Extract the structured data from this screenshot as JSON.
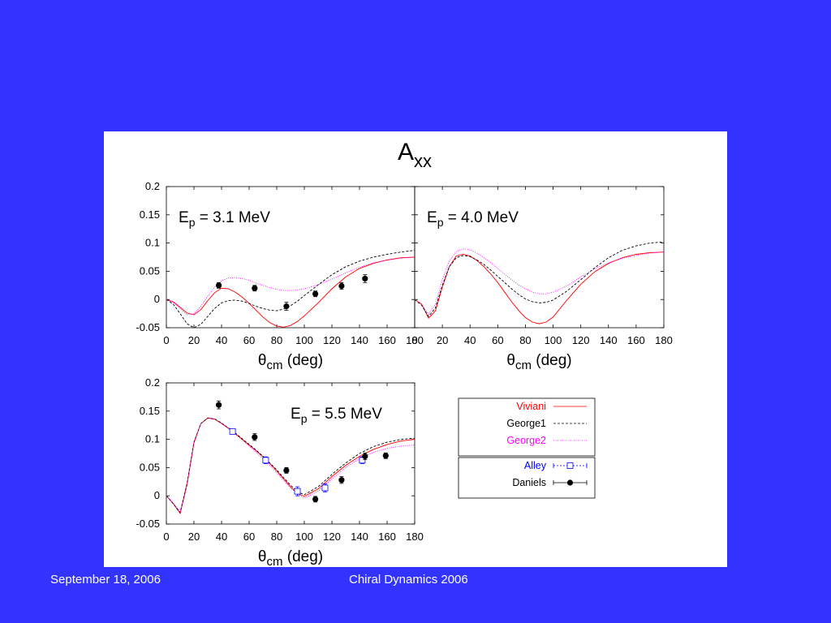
{
  "footer": {
    "date": "September 18, 2006",
    "event": "Chiral Dynamics 2006"
  },
  "figure": {
    "title_main": "A",
    "title_sub": "xx"
  },
  "colors": {
    "background": "#3333ff",
    "viviani": "#ff0000",
    "george1": "#000000",
    "george2": "#ff00ff",
    "alley": "#0000ff",
    "daniels": "#000000"
  },
  "legend": {
    "curves": [
      {
        "key": "viviani",
        "label": "Viviani",
        "color": "#ff0000",
        "style": "solid"
      },
      {
        "key": "george1",
        "label": "George1",
        "color": "#000000",
        "style": "dashed"
      },
      {
        "key": "george2",
        "label": "George2",
        "color": "#ff00ff",
        "style": "dotted"
      }
    ],
    "data": [
      {
        "key": "alley",
        "label": "Alley",
        "color": "#0000ff",
        "marker": "open-square"
      },
      {
        "key": "daniels",
        "label": "Daniels",
        "color": "#000000",
        "marker": "filled-circle"
      }
    ]
  },
  "chart_data": [
    {
      "type": "line",
      "title": "",
      "annotation": {
        "main": "E",
        "sub": "p",
        "rest": " = 3.1 MeV"
      },
      "xlabel": {
        "theta": "θ",
        "sub": "cm",
        "rest": " (deg)"
      },
      "xlim": [
        0,
        180
      ],
      "ylim": [
        -0.05,
        0.2
      ],
      "xticks": [
        "0",
        "20",
        "40",
        "60",
        "80",
        "100",
        "120",
        "140",
        "160",
        "180"
      ],
      "yticks": [
        "-0.05",
        "0",
        "0.05",
        "0.1",
        "0.15",
        "0.2"
      ],
      "series": [
        {
          "name": "Viviani",
          "color": "#ff0000",
          "style": "solid",
          "x": [
            0,
            5,
            10,
            15,
            20,
            25,
            30,
            35,
            40,
            45,
            50,
            55,
            60,
            65,
            70,
            75,
            80,
            85,
            90,
            95,
            100,
            110,
            120,
            130,
            140,
            150,
            160,
            170,
            180
          ],
          "y": [
            0.0,
            -0.004,
            -0.014,
            -0.024,
            -0.027,
            -0.018,
            -0.002,
            0.012,
            0.02,
            0.019,
            0.013,
            0.004,
            -0.007,
            -0.019,
            -0.031,
            -0.041,
            -0.047,
            -0.049,
            -0.046,
            -0.039,
            -0.029,
            -0.006,
            0.019,
            0.04,
            0.055,
            0.064,
            0.07,
            0.074,
            0.075
          ]
        },
        {
          "name": "George1",
          "color": "#000000",
          "style": "dashed",
          "x": [
            0,
            5,
            10,
            15,
            20,
            25,
            30,
            35,
            40,
            45,
            50,
            55,
            60,
            65,
            70,
            75,
            80,
            85,
            90,
            95,
            100,
            110,
            120,
            130,
            140,
            150,
            160,
            170,
            180
          ],
          "y": [
            0.0,
            -0.008,
            -0.025,
            -0.043,
            -0.05,
            -0.044,
            -0.03,
            -0.016,
            -0.006,
            -0.002,
            -0.001,
            -0.003,
            -0.007,
            -0.012,
            -0.016,
            -0.019,
            -0.02,
            -0.017,
            -0.011,
            -0.003,
            0.007,
            0.026,
            0.044,
            0.058,
            0.068,
            0.075,
            0.08,
            0.084,
            0.087
          ]
        },
        {
          "name": "George2",
          "color": "#ff00ff",
          "style": "dotted",
          "x": [
            0,
            5,
            10,
            15,
            20,
            25,
            30,
            35,
            40,
            45,
            50,
            55,
            60,
            65,
            70,
            75,
            80,
            85,
            90,
            95,
            100,
            110,
            120,
            130,
            140,
            150,
            160,
            170,
            180
          ],
          "y": [
            0.0,
            -0.005,
            -0.016,
            -0.027,
            -0.025,
            -0.012,
            0.006,
            0.022,
            0.033,
            0.038,
            0.039,
            0.037,
            0.034,
            0.029,
            0.025,
            0.021,
            0.018,
            0.016,
            0.016,
            0.017,
            0.019,
            0.026,
            0.036,
            0.047,
            0.057,
            0.065,
            0.07,
            0.073,
            0.075
          ]
        },
        {
          "name": "Daniels",
          "color": "#000000",
          "marker": "filled-circle",
          "x": [
            38,
            64,
            87,
            108,
            127,
            144
          ],
          "y": [
            0.025,
            0.02,
            -0.012,
            0.01,
            0.024,
            0.037
          ],
          "err": [
            0.005,
            0.005,
            0.007,
            0.005,
            0.006,
            0.007
          ]
        }
      ]
    },
    {
      "type": "line",
      "title": "",
      "annotation": {
        "main": "E",
        "sub": "p",
        "rest": " = 4.0 MeV"
      },
      "xlabel": {
        "theta": "θ",
        "sub": "cm",
        "rest": " (deg)"
      },
      "xlim": [
        0,
        180
      ],
      "ylim": [
        -0.05,
        0.2
      ],
      "xticks": [
        "0",
        "20",
        "40",
        "60",
        "80",
        "100",
        "120",
        "140",
        "160",
        "180"
      ],
      "yticks": [],
      "series": [
        {
          "name": "Viviani",
          "color": "#ff0000",
          "style": "solid",
          "x": [
            0,
            5,
            10,
            15,
            20,
            25,
            30,
            35,
            40,
            45,
            50,
            55,
            60,
            65,
            70,
            75,
            80,
            85,
            90,
            95,
            100,
            110,
            120,
            130,
            140,
            150,
            160,
            170,
            180
          ],
          "y": [
            0.0,
            -0.008,
            -0.033,
            -0.02,
            0.022,
            0.058,
            0.077,
            0.08,
            0.077,
            0.069,
            0.058,
            0.045,
            0.03,
            0.013,
            -0.004,
            -0.019,
            -0.032,
            -0.04,
            -0.043,
            -0.04,
            -0.031,
            -0.001,
            0.027,
            0.049,
            0.064,
            0.074,
            0.08,
            0.083,
            0.084
          ]
        },
        {
          "name": "George1",
          "color": "#000000",
          "style": "dashed",
          "x": [
            0,
            5,
            10,
            15,
            20,
            25,
            30,
            35,
            40,
            45,
            50,
            55,
            60,
            65,
            70,
            75,
            80,
            85,
            90,
            95,
            100,
            110,
            120,
            130,
            140,
            150,
            160,
            170,
            180
          ],
          "y": [
            0.0,
            -0.01,
            -0.03,
            -0.015,
            0.025,
            0.058,
            0.074,
            0.078,
            0.076,
            0.07,
            0.062,
            0.052,
            0.041,
            0.03,
            0.019,
            0.009,
            0.001,
            -0.004,
            -0.006,
            -0.005,
            -0.001,
            0.015,
            0.035,
            0.056,
            0.074,
            0.087,
            0.095,
            0.1,
            0.102
          ]
        },
        {
          "name": "George2",
          "color": "#ff00ff",
          "style": "dotted",
          "x": [
            0,
            5,
            10,
            15,
            20,
            25,
            30,
            35,
            40,
            45,
            50,
            55,
            60,
            65,
            70,
            75,
            80,
            85,
            90,
            95,
            100,
            110,
            120,
            130,
            140,
            150,
            160,
            170,
            180
          ],
          "y": [
            0.0,
            -0.009,
            -0.026,
            -0.008,
            0.035,
            0.068,
            0.085,
            0.09,
            0.088,
            0.082,
            0.074,
            0.065,
            0.055,
            0.045,
            0.035,
            0.026,
            0.019,
            0.013,
            0.01,
            0.01,
            0.013,
            0.024,
            0.04,
            0.054,
            0.065,
            0.073,
            0.078,
            0.082,
            0.084
          ]
        }
      ]
    },
    {
      "type": "line",
      "title": "",
      "annotation": {
        "main": "E",
        "sub": "p",
        "rest": " = 5.5 MeV"
      },
      "xlabel": {
        "theta": "θ",
        "sub": "cm",
        "rest": " (deg)"
      },
      "xlim": [
        0,
        180
      ],
      "ylim": [
        -0.05,
        0.2
      ],
      "xticks": [
        "0",
        "20",
        "40",
        "60",
        "80",
        "100",
        "120",
        "140",
        "160",
        "180"
      ],
      "yticks": [
        "-0.05",
        "0",
        "0.05",
        "0.1",
        "0.15",
        "0.2"
      ],
      "series": [
        {
          "name": "Viviani",
          "color": "#ff0000",
          "style": "solid",
          "x": [
            0,
            5,
            10,
            15,
            20,
            25,
            30,
            35,
            40,
            45,
            50,
            55,
            60,
            65,
            70,
            75,
            80,
            85,
            90,
            95,
            100,
            110,
            120,
            130,
            140,
            150,
            160,
            170,
            180
          ],
          "y": [
            0.0,
            -0.014,
            -0.031,
            0.02,
            0.094,
            0.128,
            0.138,
            0.136,
            0.128,
            0.12,
            0.11,
            0.1,
            0.09,
            0.08,
            0.069,
            0.057,
            0.044,
            0.03,
            0.016,
            0.004,
            -0.001,
            0.012,
            0.034,
            0.054,
            0.07,
            0.082,
            0.091,
            0.097,
            0.1
          ]
        },
        {
          "name": "George1",
          "color": "#000000",
          "style": "dashed",
          "x": [
            0,
            5,
            10,
            15,
            20,
            25,
            30,
            35,
            40,
            45,
            50,
            55,
            60,
            65,
            70,
            75,
            80,
            85,
            90,
            95,
            100,
            110,
            120,
            130,
            140,
            150,
            160,
            170,
            180
          ],
          "y": [
            0.0,
            -0.014,
            -0.03,
            0.022,
            0.095,
            0.128,
            0.138,
            0.136,
            0.129,
            0.12,
            0.111,
            0.101,
            0.091,
            0.081,
            0.07,
            0.058,
            0.046,
            0.032,
            0.019,
            0.007,
            0.002,
            0.016,
            0.038,
            0.058,
            0.075,
            0.087,
            0.095,
            0.1,
            0.102
          ]
        },
        {
          "name": "George2",
          "color": "#ff00ff",
          "style": "dotted",
          "x": [
            0,
            5,
            10,
            15,
            20,
            25,
            30,
            35,
            40,
            45,
            50,
            55,
            60,
            65,
            70,
            75,
            80,
            85,
            90,
            95,
            100,
            110,
            120,
            130,
            140,
            150,
            160,
            170,
            180
          ],
          "y": [
            0.0,
            -0.013,
            -0.028,
            0.024,
            0.096,
            0.128,
            0.137,
            0.135,
            0.128,
            0.119,
            0.109,
            0.099,
            0.088,
            0.077,
            0.066,
            0.054,
            0.041,
            0.027,
            0.014,
            0.003,
            -0.004,
            0.008,
            0.03,
            0.05,
            0.066,
            0.077,
            0.084,
            0.088,
            0.09
          ]
        },
        {
          "name": "Alley",
          "color": "#0000ff",
          "marker": "open-square",
          "x": [
            48,
            72,
            95,
            115,
            142
          ],
          "y": [
            0.114,
            0.063,
            0.008,
            0.014,
            0.063
          ],
          "err": [
            0.004,
            0.006,
            0.008,
            0.007,
            0.006
          ]
        },
        {
          "name": "Daniels",
          "color": "#000000",
          "marker": "filled-circle",
          "x": [
            38,
            64,
            87,
            108,
            127,
            144,
            159
          ],
          "y": [
            0.161,
            0.104,
            0.045,
            -0.006,
            0.028,
            0.07,
            0.071
          ],
          "err": [
            0.007,
            0.006,
            0.005,
            0.005,
            0.006,
            0.006,
            0.005
          ]
        }
      ]
    }
  ]
}
